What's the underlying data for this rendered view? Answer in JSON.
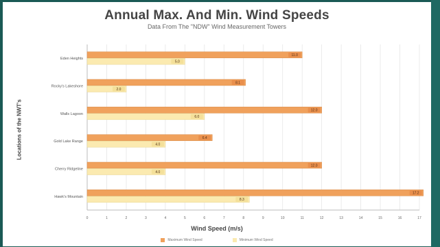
{
  "colors": {
    "max": "#f0a15c",
    "min": "#fbeab0",
    "background": "#1b5a55"
  },
  "chart_data": {
    "type": "bar",
    "orientation": "horizontal",
    "title": "Annual Max. And Min. Wind Speeds",
    "subtitle": "Data From The \"NDW\" Wind Measurement Towers",
    "xlabel": "Wind Speed (m/s)",
    "ylabel": "Locations of the NWT's",
    "xlim": [
      0,
      17
    ],
    "xticks": [
      0,
      1,
      2,
      3,
      4,
      5,
      6,
      7,
      8,
      9,
      10,
      11,
      12,
      13,
      14,
      15,
      16,
      17
    ],
    "grid": true,
    "legend_position": "bottom",
    "categories": [
      "Hawk's Mountain",
      "Cherry Ridgeline",
      "Gold Lake Range",
      "Walls Lagoon",
      "Rocky's Lakeshore",
      "Eden Heights"
    ],
    "series": [
      {
        "name": "Maximum Wind Speed",
        "values": [
          17.2,
          12.0,
          6.4,
          12.0,
          8.1,
          11.0
        ],
        "labels": [
          "17.2",
          "12.0",
          "6.4",
          "12.0",
          "8.1",
          "11.0"
        ]
      },
      {
        "name": "Minimum Wind Speed",
        "values": [
          8.3,
          4.0,
          4.0,
          6.0,
          2.0,
          5.0
        ],
        "labels": [
          "8.3",
          "4.0",
          "4.0",
          "6.0",
          "2.0",
          "5.0"
        ]
      }
    ]
  }
}
